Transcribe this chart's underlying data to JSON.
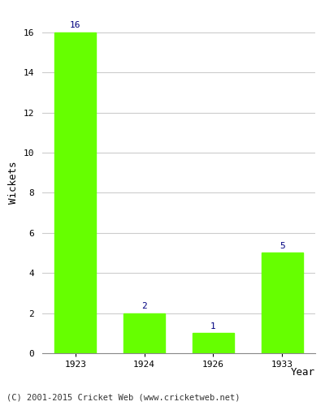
{
  "years": [
    "1923",
    "1924",
    "1926",
    "1933"
  ],
  "values": [
    16,
    2,
    1,
    5
  ],
  "bar_color": "#66ff00",
  "bar_edgecolor": "#66ff00",
  "xlabel": "Year",
  "ylabel": "Wickets",
  "ylim": [
    0,
    17
  ],
  "yticks": [
    0,
    2,
    4,
    6,
    8,
    10,
    12,
    14,
    16
  ],
  "label_color": "#000080",
  "label_fontsize": 8,
  "axis_label_fontsize": 9,
  "tick_fontsize": 8,
  "footer_text": "(C) 2001-2015 Cricket Web (www.cricketweb.net)",
  "footer_fontsize": 7.5,
  "background_color": "#ffffff",
  "grid_color": "#cccccc"
}
